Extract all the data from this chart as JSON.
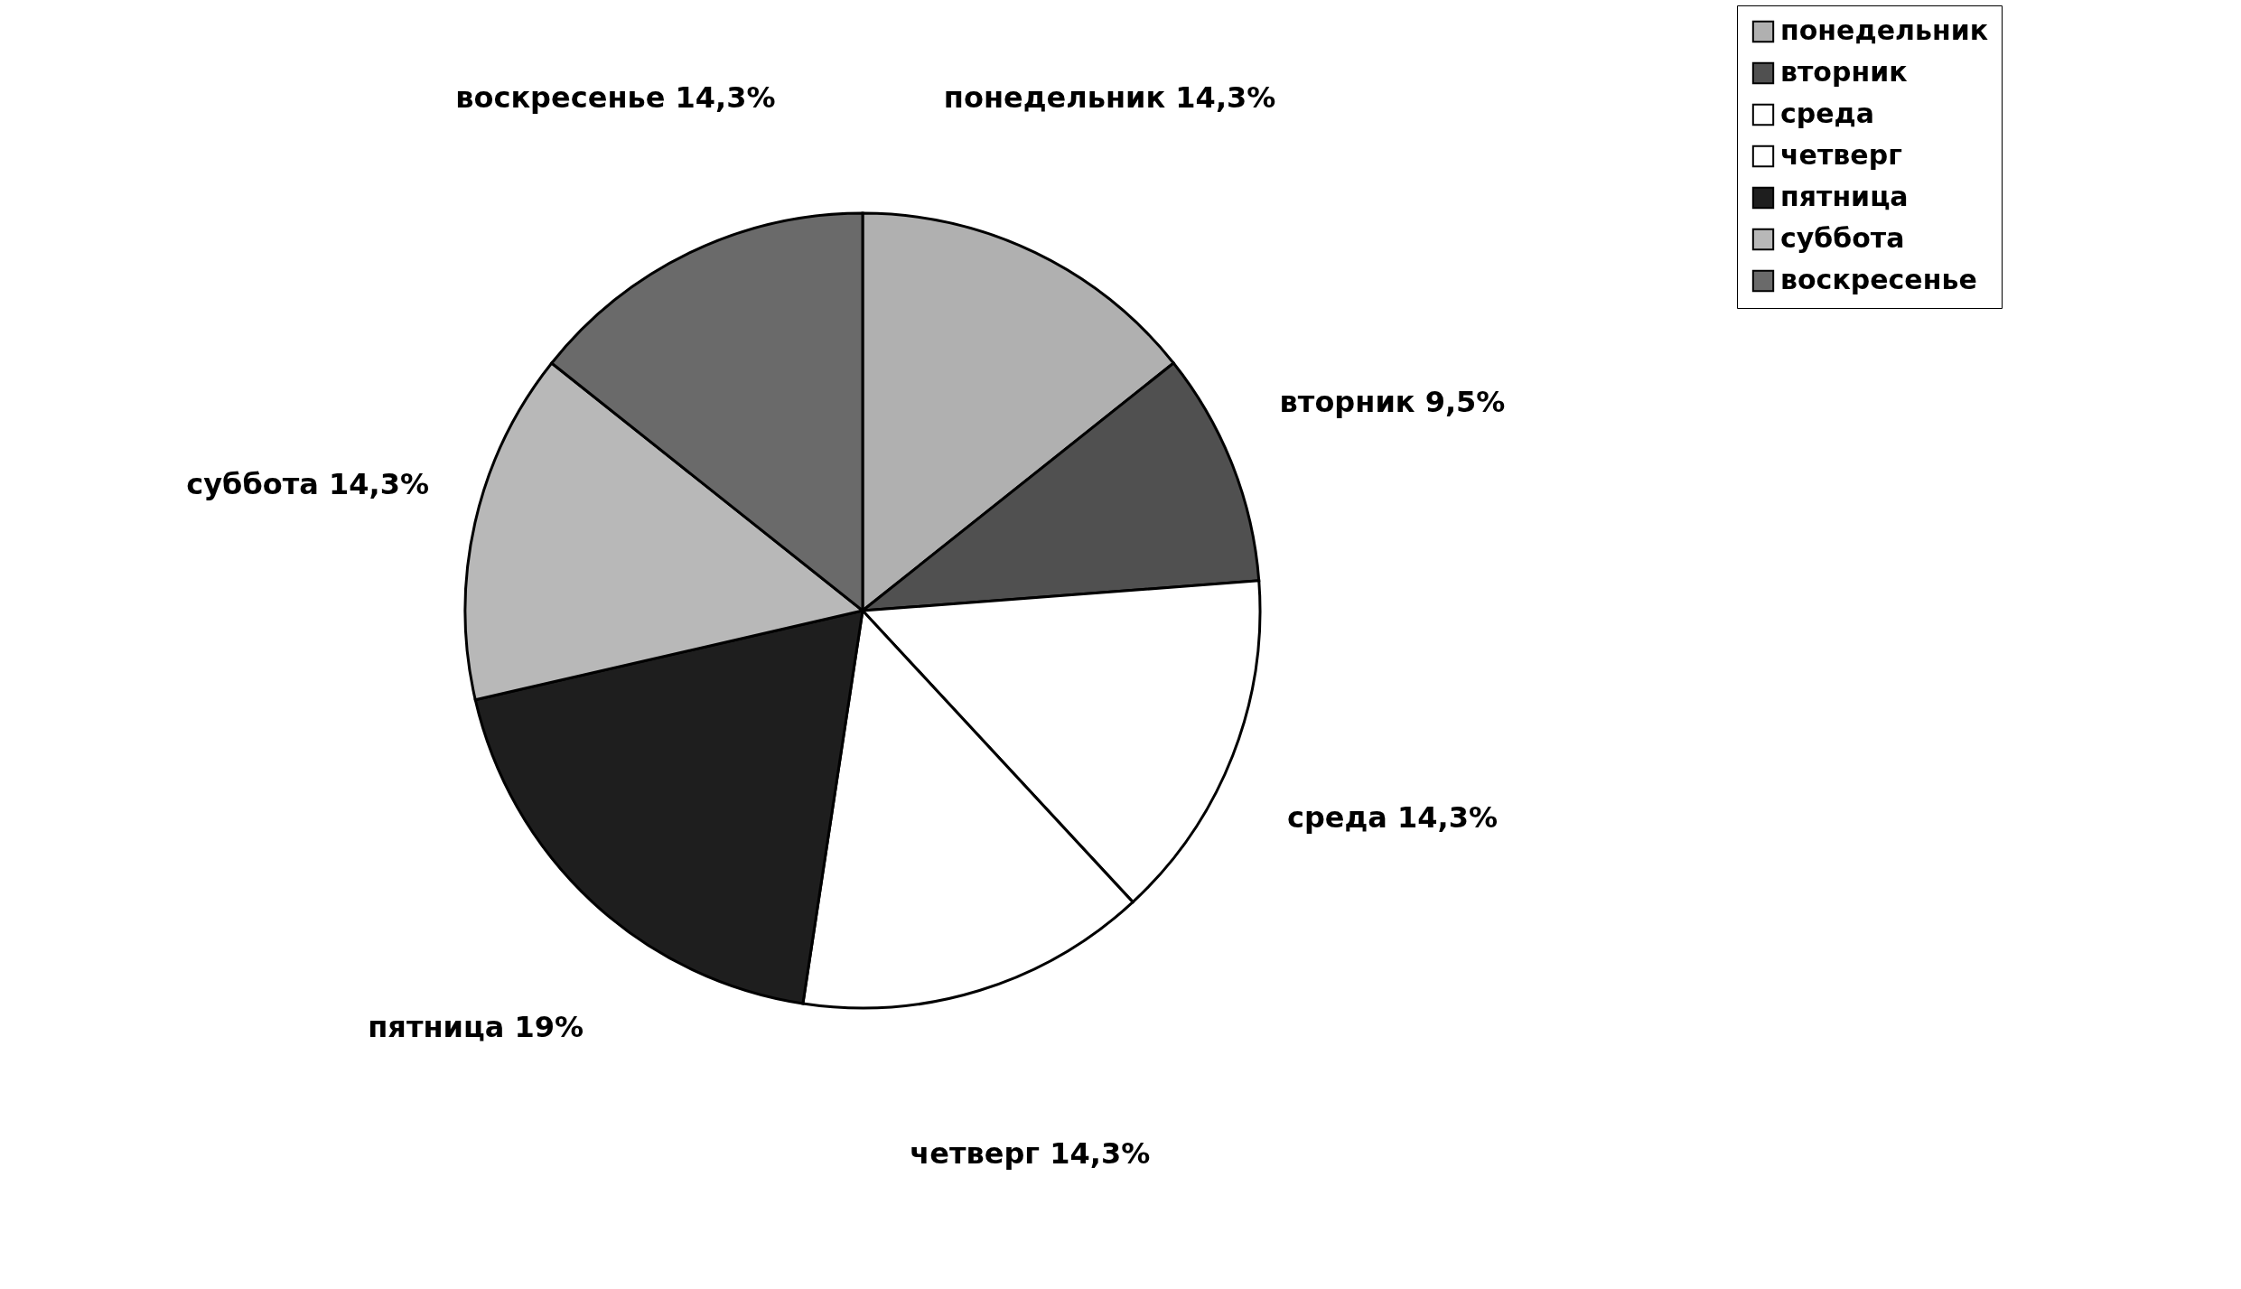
{
  "chart_data": {
    "type": "pie",
    "categories": [
      "понедельник",
      "вторник",
      "среда",
      "четверг",
      "пятница",
      "суббота",
      "воскресенье"
    ],
    "values": [
      14.3,
      9.5,
      14.3,
      14.3,
      19,
      14.3,
      14.3
    ],
    "value_labels": [
      "14,3%",
      "9,5%",
      "14,3%",
      "14,3%",
      "19%",
      "14,3%",
      "14,3%"
    ],
    "colors": [
      "#b0b0b0",
      "#505050",
      "#ffffff",
      "#ffffff",
      "#1e1e1e",
      "#b8b8b8",
      "#6a6a6a"
    ],
    "legend": "right"
  }
}
